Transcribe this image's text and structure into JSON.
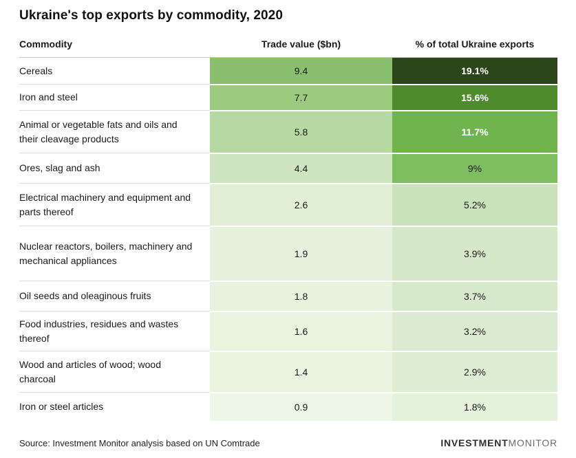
{
  "title": "Ukraine's top exports by commodity, 2020",
  "table": {
    "headers": {
      "commodity": "Commodity",
      "trade_value": "Trade value ($bn)",
      "pct": "% of total Ukraine exports"
    },
    "rows": [
      {
        "commodity": "Cereals",
        "trade_value": "9.4",
        "pct": "19.1%",
        "trade_bg": "#8AC06D",
        "pct_bg": "#2A451A",
        "pct_text": "#FFFFFF",
        "min_height": 38
      },
      {
        "commodity": "Iron and steel",
        "trade_value": "7.7",
        "pct": "15.6%",
        "trade_bg": "#9CCB80",
        "pct_bg": "#4F8A2F",
        "pct_text": "#FFFFFF",
        "min_height": 38
      },
      {
        "commodity": "Animal or vegetable fats and oils and their cleavage products",
        "trade_value": "5.8",
        "pct": "11.7%",
        "trade_bg": "#B6D8A3",
        "pct_bg": "#6FB44C",
        "pct_text": "#FFFFFF",
        "min_height": 62
      },
      {
        "commodity": "Ores, slag and ash",
        "trade_value": "4.4",
        "pct": "9%",
        "trade_bg": "#CFE5C2",
        "pct_bg": "#7FBE60",
        "pct_text": "#1A1A1A",
        "min_height": 44
      },
      {
        "commodity": "Electrical machinery and equipment and parts thereof",
        "trade_value": "2.6",
        "pct": "5.2%",
        "trade_bg": "#E1EFD7",
        "pct_bg": "#C9E2B9",
        "pct_text": "#1A1A1A",
        "min_height": 62
      },
      {
        "commodity": "Nuclear reactors, boilers, machinery and mechanical appliances",
        "trade_value": "1.9",
        "pct": "3.9%",
        "trade_bg": "#E6F2DD",
        "pct_bg": "#D5E8C8",
        "pct_text": "#1A1A1A",
        "min_height": 80
      },
      {
        "commodity": "Oil seeds and oleaginous fruits",
        "trade_value": "1.8",
        "pct": "3.7%",
        "trade_bg": "#E7F3DE",
        "pct_bg": "#D7E9CB",
        "pct_text": "#1A1A1A",
        "min_height": 44
      },
      {
        "commodity": "Food industries, residues and wastes thereof",
        "trade_value": "1.6",
        "pct": "3.2%",
        "trade_bg": "#E8F3E0",
        "pct_bg": "#DAEBCF",
        "pct_text": "#1A1A1A",
        "min_height": 58
      },
      {
        "commodity": "Wood and articles of wood; wood charcoal",
        "trade_value": "1.4",
        "pct": "2.9%",
        "trade_bg": "#E9F4E1",
        "pct_bg": "#DDEDD3",
        "pct_text": "#1A1A1A",
        "min_height": 60
      },
      {
        "commodity": "Iron or steel articles",
        "trade_value": "0.9",
        "pct": "1.8%",
        "trade_bg": "#EDF6E7",
        "pct_bg": "#E4F1DB",
        "pct_text": "#1A1A1A",
        "min_height": 42
      }
    ]
  },
  "footer": {
    "source": "Source: Investment Monitor analysis based on UN Comtrade",
    "logo_bold": "INVESTMENT",
    "logo_light": "MONITOR"
  },
  "colors": {
    "heatmap_min": "#EDF6E7",
    "heatmap_max": "#2A451A",
    "row_divider": "#DCDCDC",
    "header_divider": "#C8C8C8"
  },
  "chart_data": {
    "type": "table",
    "subtype": "heatmap-table",
    "title": "Ukraine's top exports by commodity, 2020",
    "columns": [
      "Commodity",
      "Trade value ($bn)",
      "% of total Ukraine exports"
    ],
    "rows": [
      [
        "Cereals",
        9.4,
        19.1
      ],
      [
        "Iron and steel",
        7.7,
        15.6
      ],
      [
        "Animal or vegetable fats and oils and their cleavage products",
        5.8,
        11.7
      ],
      [
        "Ores, slag and ash",
        4.4,
        9.0
      ],
      [
        "Electrical machinery and equipment and parts thereof",
        2.6,
        5.2
      ],
      [
        "Nuclear reactors, boilers, machinery and mechanical appliances",
        1.9,
        3.9
      ],
      [
        "Oil seeds and oleaginous fruits",
        1.8,
        3.7
      ],
      [
        "Food industries, residues and wastes thereof",
        1.6,
        3.2
      ],
      [
        "Wood and articles of wood; wood charcoal",
        1.4,
        2.9
      ],
      [
        "Iron or steel articles",
        0.9,
        1.8
      ]
    ],
    "value_units": [
      "",
      "$bn",
      "%"
    ],
    "shading": "green heatmap scaled to cell value, darker = larger",
    "source": "Source: Investment Monitor analysis based on UN Comtrade"
  }
}
